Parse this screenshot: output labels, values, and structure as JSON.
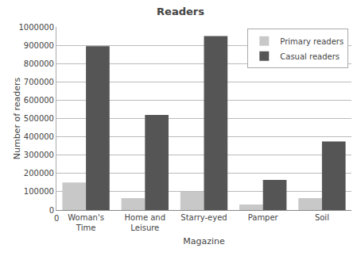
{
  "chart_data": {
    "type": "bar",
    "title": "Readers",
    "xlabel": "Magazine",
    "ylabel": "Number of readers",
    "categories": [
      "Woman's\nTime",
      "Home and\nLeisure",
      "Starry-eyed",
      "Pamper",
      "Soil"
    ],
    "series": [
      {
        "name": "Primary readers",
        "color": "#c8c8c8",
        "values": [
          150000,
          65000,
          100000,
          30000,
          65000
        ]
      },
      {
        "name": "Casual readers",
        "color": "#555555",
        "values": [
          895000,
          520000,
          950000,
          165000,
          375000
        ]
      }
    ],
    "ylim": [
      0,
      1000000
    ],
    "yticks": [
      0,
      100000,
      200000,
      300000,
      400000,
      500000,
      600000,
      700000,
      800000,
      900000,
      1000000
    ],
    "grid": true,
    "legend": "upper right",
    "annotations": [
      "0"
    ]
  }
}
